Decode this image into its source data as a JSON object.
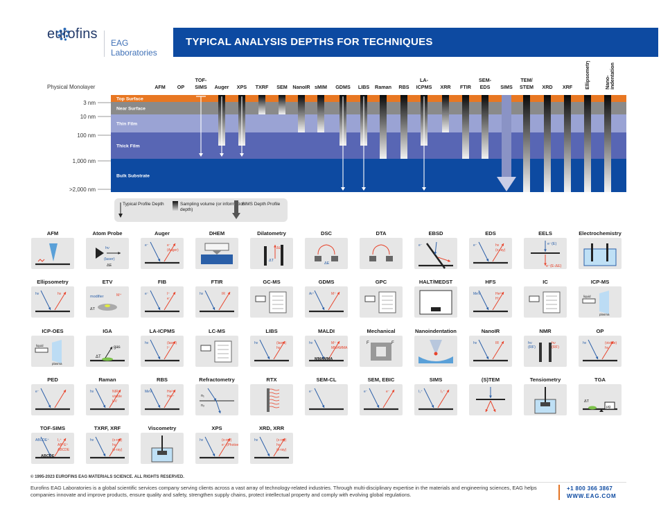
{
  "brand": {
    "name": "eurofins",
    "sub": "EAG Laboratories"
  },
  "title": "TYPICAL ANALYSIS DEPTHS FOR TECHNIQUES",
  "colors": {
    "banner": "#0d4aa1",
    "top_surface": "#e87722",
    "near_surface": "#8a8a8a",
    "thin_film": "#9aa3d4",
    "thick_film": "#5866b4",
    "bulk": "#0d4aa1",
    "accent_red": "#e8442c"
  },
  "depth_chart": {
    "physical_monolayer": "Physical Monolayer",
    "depth_labels": [
      "3 nm",
      "10 nm",
      "100 nm",
      "1,000 nm",
      ">2,000 nm"
    ],
    "layers": [
      "Top Surface",
      "Near Surface",
      "Thin Film",
      "Thick Film",
      "Bulk Substrate"
    ],
    "techniques": [
      {
        "name": "AFM",
        "depth": "monolayer",
        "type": "none"
      },
      {
        "name": "OP",
        "depth": "monolayer",
        "type": "none"
      },
      {
        "name": "TOF-SIMS",
        "depth": "thick",
        "type": "arrow"
      },
      {
        "name": "Auger",
        "depth": "thick",
        "type": "gradient+arrow"
      },
      {
        "name": "XPS",
        "depth": "thick",
        "type": "gradient+arrow"
      },
      {
        "name": "TXRF",
        "depth": "near",
        "type": "gradient"
      },
      {
        "name": "SEM",
        "depth": "near",
        "type": "gradient"
      },
      {
        "name": "NanoIR",
        "depth": "thin",
        "type": "gradient"
      },
      {
        "name": "sMIM",
        "depth": "thin",
        "type": "gradient"
      },
      {
        "name": "GDMS",
        "depth": "bulk",
        "type": "gradient+arrow"
      },
      {
        "name": "LIBS",
        "depth": "bulk",
        "type": "gradient+arrow"
      },
      {
        "name": "Raman",
        "depth": "thick",
        "type": "gradient"
      },
      {
        "name": "RBS",
        "depth": "thick",
        "type": "gradient"
      },
      {
        "name": "LA-ICPMS",
        "depth": "bulk",
        "type": "gradient+arrow"
      },
      {
        "name": "XRR",
        "depth": "thin",
        "type": "gradient"
      },
      {
        "name": "FTIR",
        "depth": "thick",
        "type": "gradient"
      },
      {
        "name": "SEM-EDS",
        "depth": "thick",
        "type": "gradient"
      },
      {
        "name": "SIMS",
        "depth": "bulk",
        "type": "sims"
      },
      {
        "name": "TEM/STEM",
        "depth": "bulk",
        "type": "gradient"
      },
      {
        "name": "XRD",
        "depth": "bulk",
        "type": "gradient"
      },
      {
        "name": "XRF",
        "depth": "bulk",
        "type": "gradient"
      },
      {
        "name": "Ellipsometry",
        "depth": "bulk",
        "type": "gradient"
      },
      {
        "name": "Nano-indentation",
        "depth": "bulk",
        "type": "gradient"
      }
    ],
    "legend": {
      "profile": "Typical Profile Depth",
      "sampling": "Sampling volume (or information depth)",
      "sims": "SIMS Depth Profile"
    }
  },
  "tiles": [
    {
      "name": "AFM",
      "icon": "afm-tip-icon"
    },
    {
      "name": "Atom Probe",
      "icon": "atom-probe-icon",
      "texts": [
        "hν",
        "(laser)",
        "ΔE"
      ]
    },
    {
      "name": "Auger",
      "icon": "auger-icon",
      "texts": [
        "e⁻",
        "e⁻",
        "(Auger)"
      ]
    },
    {
      "name": "DHEM",
      "icon": "dhem-icon"
    },
    {
      "name": "Dilatometry",
      "icon": "dilatometry-icon",
      "texts": [
        "ΔL",
        "ΔT"
      ]
    },
    {
      "name": "DSC",
      "icon": "dsc-icon",
      "texts": [
        "ΔE"
      ]
    },
    {
      "name": "DTA",
      "icon": "dta-icon"
    },
    {
      "name": "EBSD",
      "icon": "ebsd-icon",
      "texts": [
        "e⁻"
      ]
    },
    {
      "name": "EDS",
      "icon": "eds-icon",
      "texts": [
        "e⁻",
        "hν",
        "(x-ray)"
      ]
    },
    {
      "name": "EELS",
      "icon": "eels-icon",
      "texts": [
        "e⁻(E)",
        "e⁻(E-ΔE)"
      ]
    },
    {
      "name": "Electrochemistry",
      "icon": "electrochemistry-icon"
    },
    {
      "name": "Ellipsometry",
      "icon": "ellipsometry-icon",
      "texts": [
        "hν",
        "hν"
      ]
    },
    {
      "name": "ETV",
      "icon": "etv-icon",
      "texts": [
        "modifier",
        "M⁺",
        "ΔT"
      ]
    },
    {
      "name": "FIB",
      "icon": "fib-icon",
      "texts": [
        "e⁻",
        "I⁺",
        "e⁻"
      ]
    },
    {
      "name": "FTIR",
      "icon": "ftir-icon",
      "texts": [
        "hν",
        "IR"
      ]
    },
    {
      "name": "GC-MS",
      "icon": "gcms-icon"
    },
    {
      "name": "GDMS",
      "icon": "gdms-icon",
      "texts": [
        "Ar⁺",
        "M⁺"
      ]
    },
    {
      "name": "GPC",
      "icon": "gpc-icon"
    },
    {
      "name": "HALT/MEDST",
      "icon": "halt-icon"
    },
    {
      "name": "HFS",
      "icon": "hfs-icon",
      "texts": [
        "MeV",
        "He²⁺",
        "H⁺"
      ]
    },
    {
      "name": "IC",
      "icon": "ic-icon"
    },
    {
      "name": "ICP-MS",
      "icon": "icpms-icon",
      "texts": [
        "liquid",
        "plasma"
      ]
    },
    {
      "name": "ICP-OES",
      "icon": "icpoes-icon",
      "texts": [
        "liquid",
        "plasma"
      ]
    },
    {
      "name": "IGA",
      "icon": "iga-icon",
      "texts": [
        "ΔT",
        "gas"
      ]
    },
    {
      "name": "LA-ICPMS",
      "icon": "laicpms-icon",
      "texts": [
        "hν",
        "(laser)",
        "I⁺"
      ]
    },
    {
      "name": "LC-MS",
      "icon": "lcms-icon"
    },
    {
      "name": "LIBS",
      "icon": "libs-icon",
      "texts": [
        "hν",
        "(laser)",
        "hν"
      ]
    },
    {
      "name": "MALDI",
      "icon": "maldi-icon",
      "texts": [
        "hν",
        "M⁺",
        "MMAMMA"
      ]
    },
    {
      "name": "Mechanical",
      "icon": "mechanical-icon",
      "texts": [
        "F",
        "F"
      ]
    },
    {
      "name": "Nanoindentation",
      "icon": "nanoindentation-icon"
    },
    {
      "name": "NanoIR",
      "icon": "nanoir-icon",
      "texts": [
        "hν",
        "IR"
      ]
    },
    {
      "name": "NMR",
      "icon": "nmr-icon",
      "texts": [
        "hν",
        "(RF)",
        "hν",
        "(RF)"
      ]
    },
    {
      "name": "OP",
      "icon": "op-icon",
      "texts": [
        "hν",
        "(visible)",
        "hν"
      ]
    },
    {
      "name": "PED",
      "icon": "ped-icon",
      "texts": [
        "e⁻"
      ]
    },
    {
      "name": "Raman",
      "icon": "raman-icon",
      "texts": [
        "hν",
        "NIR",
        "visible",
        "UV"
      ]
    },
    {
      "name": "RBS",
      "icon": "rbs-icon",
      "texts": [
        "MeV",
        "He²⁺",
        "He²⁺"
      ]
    },
    {
      "name": "Refractometry",
      "icon": "refractometry-icon",
      "texts": [
        "n₁",
        "n₂"
      ]
    },
    {
      "name": "RTX",
      "icon": "rtx-icon"
    },
    {
      "name": "SEM-CL",
      "icon": "semcl-icon",
      "texts": [
        "e⁻"
      ]
    },
    {
      "name": "SEM, EBIC",
      "icon": "sem-ebic-icon",
      "texts": [
        "e⁻",
        "e⁻"
      ]
    },
    {
      "name": "SIMS",
      "icon": "sims-icon",
      "texts": [
        "I₁⁺",
        "I₂⁺"
      ]
    },
    {
      "name": "(S)TEM",
      "icon": "stem-icon"
    },
    {
      "name": "Tensiometry",
      "icon": "tensiometry-icon"
    },
    {
      "name": "TGA",
      "icon": "tga-icon",
      "texts": [
        "ΔT",
        "μg"
      ]
    },
    {
      "name": "TOF-SIMS",
      "icon": "tofsims-icon",
      "texts": [
        "ABCDE⁺",
        "I₁⁺",
        "AB⁺E⁺",
        "ABCDE"
      ]
    },
    {
      "name": "TXRF, XRF",
      "icon": "txrf-icon",
      "texts": [
        "hν",
        "(x-ray)",
        "hν",
        "(x-ray)"
      ]
    },
    {
      "name": "Viscometry",
      "icon": "viscometry-icon"
    },
    {
      "name": "XPS",
      "icon": "xps-icon",
      "texts": [
        "hν",
        "(x-ray)",
        "e⁻ (Photoelectron)"
      ]
    },
    {
      "name": "XRD, XRR",
      "icon": "xrd-icon",
      "texts": [
        "hν",
        "(x-ray)",
        "hν",
        "(x-ray)"
      ]
    }
  ],
  "copyright": "© 1995-2023 EUROFINS EAG MATERIALS SCIENCE. ALL RIGHTS RESERVED.",
  "footer_text": "Eurofins EAG Laboratories is a global scientific services company serving clients across a vast array of technology-related industries. Through multi-disciplinary expertise in the materials and engineering sciences, EAG helps companies innovate and improve products, ensure quality and safety, strengthen supply chains, protect intellectual property and comply with evolving global regulations.",
  "phone": "+1 800 366 3867",
  "website": "WWW.EAG.COM"
}
